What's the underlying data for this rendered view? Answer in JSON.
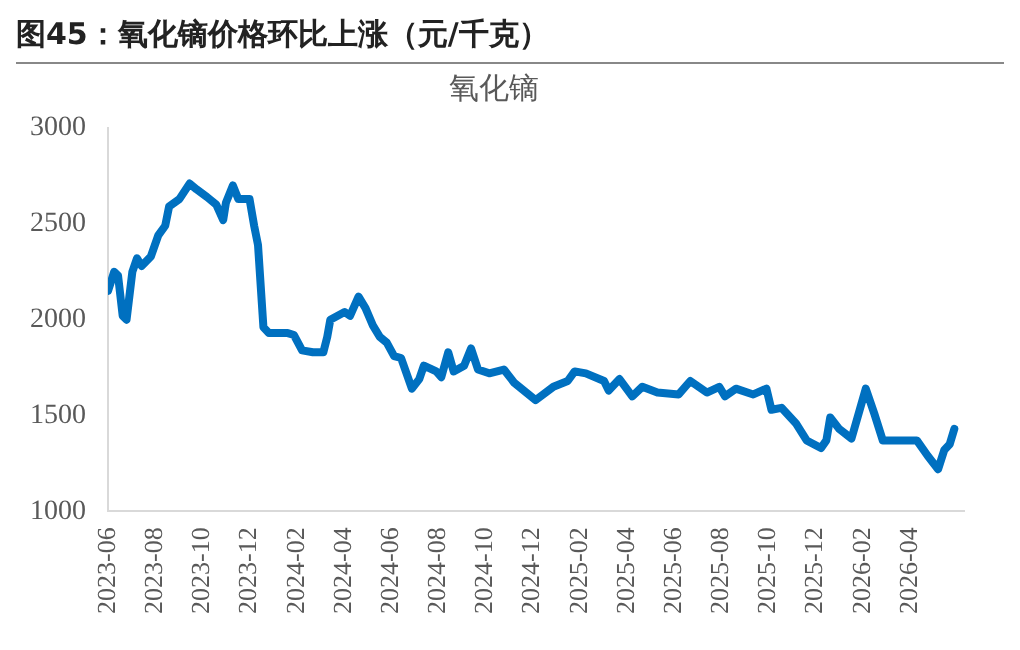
{
  "chart_data": {
    "type": "line",
    "title": "图45：氧化镝价格环比上涨（元/千克）",
    "subtitle": "氧化镝",
    "x": [
      "2023-06-01",
      "2023-06-09",
      "2023-06-14",
      "2023-06-20",
      "2023-06-25",
      "2023-07-02",
      "2023-07-08",
      "2023-07-14",
      "2023-07-26",
      "2023-08-05",
      "2023-08-14",
      "2023-08-19",
      "2023-09-02",
      "2023-09-15",
      "2023-09-24",
      "2023-10-07",
      "2023-10-19",
      "2023-10-28",
      "2023-11-01",
      "2023-11-10",
      "2023-11-17",
      "2023-12-01",
      "2023-12-07",
      "2023-12-12",
      "2023-12-19",
      "2023-12-26",
      "2024-01-20",
      "2024-01-28",
      "2024-02-08",
      "2024-02-22",
      "2024-03-05",
      "2024-03-10",
      "2024-03-14",
      "2024-04-02",
      "2024-04-09",
      "2024-04-20",
      "2024-04-29",
      "2024-05-08",
      "2024-05-17",
      "2024-05-26",
      "2024-06-05",
      "2024-06-14",
      "2024-06-28",
      "2024-07-07",
      "2024-07-13",
      "2024-07-29",
      "2024-08-05",
      "2024-08-14",
      "2024-08-21",
      "2024-09-04",
      "2024-09-13",
      "2024-09-22",
      "2024-10-06",
      "2024-10-25",
      "2024-11-08",
      "2024-12-05",
      "2024-12-28",
      "2025-01-16",
      "2025-01-25",
      "2025-02-09",
      "2025-03-02",
      "2025-03-08",
      "2025-03-22",
      "2025-04-08",
      "2025-04-21",
      "2025-05-10",
      "2025-06-07",
      "2025-06-22",
      "2025-07-13",
      "2025-07-29",
      "2025-08-06",
      "2025-08-20",
      "2025-09-12",
      "2025-09-29",
      "2025-10-05",
      "2025-10-18",
      "2025-11-06",
      "2025-11-20",
      "2025-12-08",
      "2025-12-15",
      "2025-12-20",
      "2026-01-01",
      "2026-01-17",
      "2026-02-05",
      "2026-02-16",
      "2026-02-27",
      "2026-03-13",
      "2026-04-10",
      "2026-04-24",
      "2026-05-07",
      "2026-05-15",
      "2026-05-22",
      "2026-05-28"
    ],
    "series": [
      {
        "color": "#0070c0",
        "values": [
          2150,
          2250,
          2230,
          2020,
          2000,
          2250,
          2320,
          2280,
          2330,
          2440,
          2490,
          2590,
          2630,
          2710,
          2680,
          2640,
          2600,
          2520,
          2610,
          2700,
          2630,
          2630,
          2490,
          2390,
          1960,
          1930,
          1930,
          1920,
          1840,
          1830,
          1830,
          1910,
          2000,
          2040,
          2020,
          2120,
          2060,
          1970,
          1910,
          1880,
          1810,
          1800,
          1640,
          1690,
          1760,
          1730,
          1700,
          1830,
          1730,
          1760,
          1850,
          1740,
          1720,
          1740,
          1670,
          1580,
          1650,
          1680,
          1730,
          1720,
          1680,
          1630,
          1690,
          1600,
          1650,
          1620,
          1610,
          1680,
          1620,
          1650,
          1600,
          1640,
          1610,
          1640,
          1530,
          1540,
          1460,
          1370,
          1330,
          1370,
          1490,
          1430,
          1380,
          1640,
          1510,
          1370,
          1370,
          1370,
          1290,
          1220,
          1320,
          1350,
          1430
        ]
      }
    ],
    "xlim": [
      "2023-06-01",
      "2026-06-10"
    ],
    "xticks": [
      "2023-06",
      "2023-08",
      "2023-10",
      "2023-12",
      "2024-02",
      "2024-04",
      "2024-06",
      "2024-08",
      "2024-10",
      "2024-12",
      "2025-02",
      "2025-04",
      "2025-06",
      "2025-08",
      "2025-10",
      "2025-12",
      "2026-02",
      "2026-04"
    ],
    "ylim": [
      1000,
      3000
    ],
    "yticks": [
      1000,
      1500,
      2000,
      2500,
      3000
    ],
    "grid": false,
    "legend": false,
    "marker": "none",
    "line_style": "solid"
  }
}
